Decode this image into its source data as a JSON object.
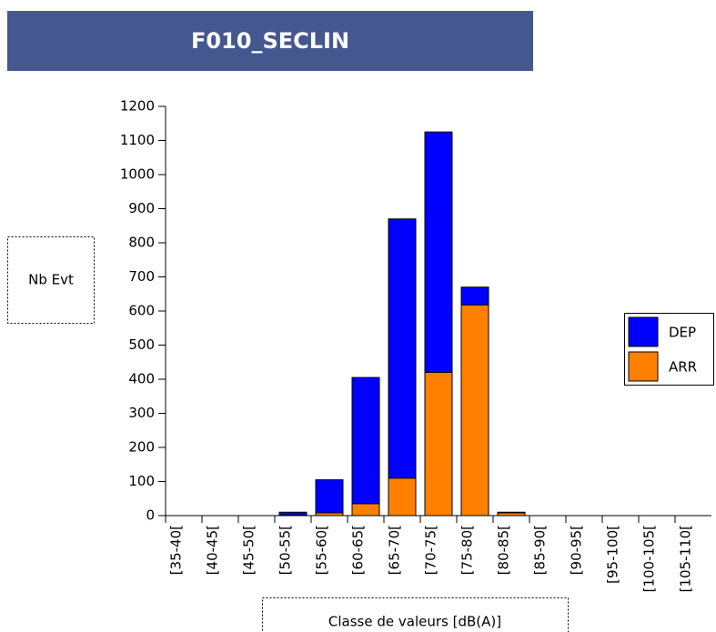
{
  "chart_data": {
    "type": "stacked_bar",
    "title": "F010_SECLIN",
    "x_label": "Classe de valeurs [dB(A)]",
    "y_label": "Nb Evt",
    "categories": [
      "[35-40[",
      "[40-45[",
      "[45-50[",
      "[50-55[",
      "[55-60[",
      "[60-65[",
      "[65-70[",
      "[70-75[",
      "[75-80[",
      "[80-85[",
      "[85-90[",
      "[90-95[",
      "[95-100[",
      "[100-105[",
      "[105-110["
    ],
    "series": [
      {
        "name": "DEP",
        "color": "#0000ff",
        "values": [
          0,
          0,
          0,
          8,
          97,
          370,
          760,
          705,
          52,
          2,
          0,
          0,
          0,
          0,
          0
        ]
      },
      {
        "name": "ARR",
        "color": "#ff8000",
        "values": [
          0,
          0,
          0,
          2,
          8,
          35,
          110,
          420,
          618,
          8,
          0,
          0,
          0,
          0,
          0
        ]
      }
    ],
    "stack_order": [
      "ARR",
      "DEP"
    ],
    "ylim": [
      0,
      1200
    ],
    "yticks": [
      0,
      100,
      200,
      300,
      400,
      500,
      600,
      700,
      800,
      900,
      1000,
      1100,
      1200
    ]
  }
}
